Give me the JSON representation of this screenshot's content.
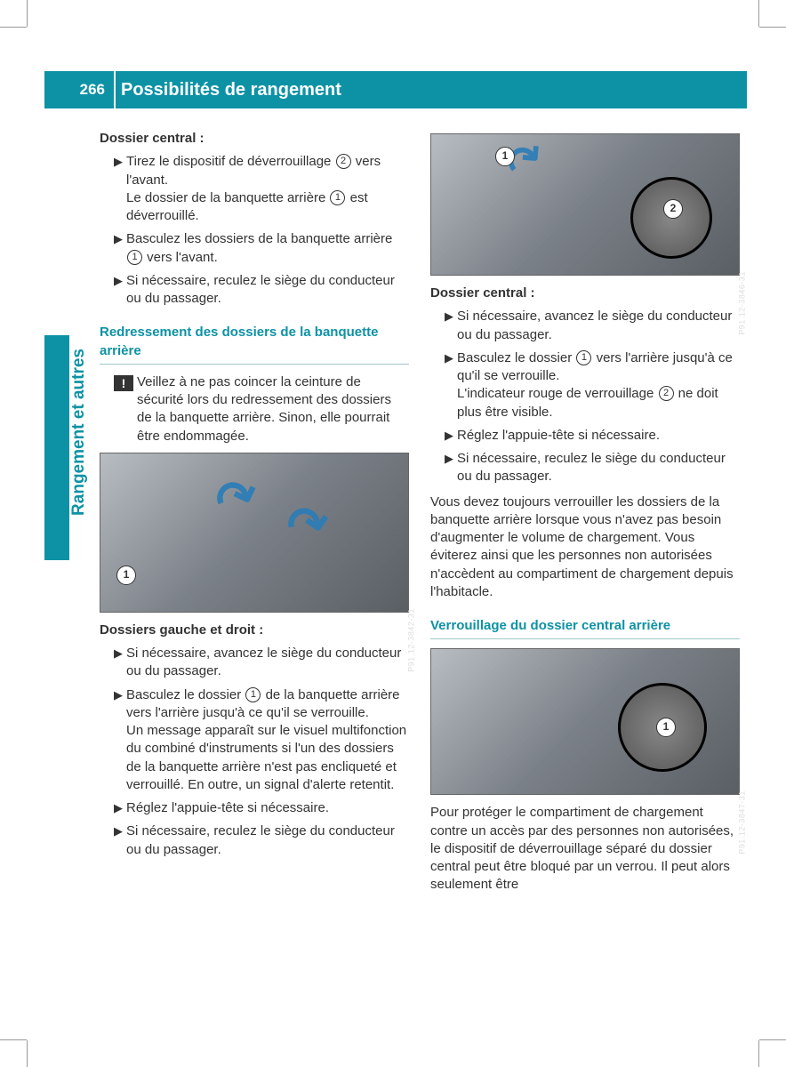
{
  "page_number": "266",
  "header_title": "Possibilités de rangement",
  "side_label": "Rangement et autres",
  "colors": {
    "brand": "#0d92a5",
    "text": "#333333",
    "white": "#ffffff",
    "arrow_blue": "#2a7db8"
  },
  "left": {
    "sec1_title": "Dossier central :",
    "sec1_items": [
      {
        "pre": "Tirez le dispositif de déverrouillage ",
        "ref": "2",
        "mid": " vers l'avant.",
        "br": true,
        "post_pre": "Le dossier de la banquette arrière ",
        "post_ref": "1",
        "post": " est déverrouillé."
      },
      {
        "pre": "Basculez les dossiers de la banquette arrière ",
        "ref": "1",
        "mid": " vers l'avant."
      },
      {
        "pre": "Si nécessaire, reculez le siège du conducteur ou du passager."
      }
    ],
    "sec2_title": "Redressement des dossiers de la banquette arrière",
    "warn": "Veillez à ne pas coincer la ceinture de sécurité lors du redressement des dossiers de la banquette arrière. Sinon, elle pourrait être endommagée.",
    "fig1_label": "P91.12-3842-31",
    "sec3_title": "Dossiers gauche et droit :",
    "sec3_items": [
      {
        "pre": "Si nécessaire, avancez le siège du conducteur ou du passager."
      },
      {
        "pre": "Basculez le dossier ",
        "ref": "1",
        "mid": " de la banquette arrière vers l'arrière jusqu'à ce qu'il se verrouille.",
        "br": true,
        "post_pre": "Un message apparaît sur le visuel multifonction du combiné d'instruments si l'un des dossiers de la banquette arrière n'est pas encliqueté et verrouillé. En outre, un signal d'alerte retentit."
      },
      {
        "pre": "Réglez l'appuie-tête si nécessaire."
      },
      {
        "pre": "Si nécessaire, reculez le siège du conducteur ou du passager."
      }
    ]
  },
  "right": {
    "fig2_label": "P91.12-3846-31",
    "sec4_title": "Dossier central :",
    "sec4_items": [
      {
        "pre": "Si nécessaire, avancez le siège du conducteur ou du passager."
      },
      {
        "pre": "Basculez le dossier ",
        "ref": "1",
        "mid": " vers l'arrière jusqu'à ce qu'il se verrouille.",
        "br": true,
        "post_pre": "L'indicateur rouge de verrouillage ",
        "post_ref": "2",
        "post": " ne doit plus être visible."
      },
      {
        "pre": "Réglez l'appuie-tête si nécessaire."
      },
      {
        "pre": "Si nécessaire, reculez le siège du conducteur ou du passager."
      }
    ],
    "para1": "Vous devez toujours verrouiller les dossiers de la banquette arrière lorsque vous n'avez pas besoin d'augmenter le volume de chargement. Vous éviterez ainsi que les personnes non autorisées n'accèdent au compartiment de chargement depuis l'habitacle.",
    "sec5_title": "Verrouillage du dossier central arrière",
    "fig3_label": "P91.12-3847-31",
    "para2": "Pour protéger le compartiment de chargement contre un accès par des personnes non autorisées, le dispositif de déverrouillage séparé du dossier central peut être bloqué par un verrou. Il peut alors seulement être"
  }
}
